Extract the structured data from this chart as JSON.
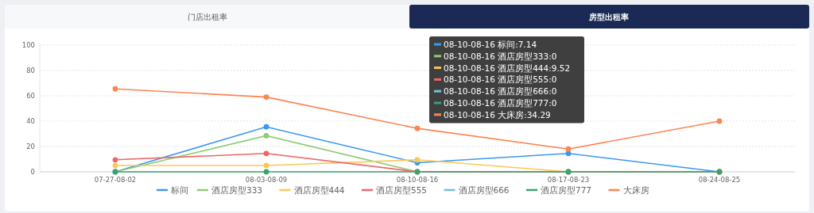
{
  "chart_data": {
    "type": "line",
    "categories": [
      "07-27-08-02",
      "08-03-08-09",
      "08-10-08-16",
      "08-17-08-23",
      "08-24-08-25"
    ],
    "series": [
      {
        "name": "标间",
        "color": "#3a98f0",
        "values": [
          0,
          35.5,
          7.14,
          14.5,
          0
        ]
      },
      {
        "name": "酒店房型333",
        "color": "#91cc75",
        "values": [
          0,
          28.5,
          0,
          0,
          0
        ]
      },
      {
        "name": "酒店房型444",
        "color": "#fac858",
        "values": [
          5,
          5,
          9.52,
          0,
          0
        ]
      },
      {
        "name": "酒店房型555",
        "color": "#ee6666",
        "values": [
          9.5,
          14.5,
          0,
          0,
          0
        ]
      },
      {
        "name": "酒店房型666",
        "color": "#73c0de",
        "values": [
          null,
          null,
          null,
          null,
          null
        ]
      },
      {
        "name": "酒店房型777",
        "color": "#3ba272",
        "values": [
          0,
          0,
          0,
          0,
          0
        ]
      },
      {
        "name": "大床房",
        "color": "#fc8452",
        "values": [
          65.5,
          59,
          34.29,
          18,
          40
        ]
      }
    ],
    "ylim": [
      0,
      100
    ],
    "yticks": [
      0,
      20,
      40,
      60,
      80,
      100
    ],
    "grid": "y",
    "legend": "bottom",
    "marker": "circle",
    "line_style": "solid",
    "annotations": [
      "门店出租率",
      "房型出租率",
      "08-10-08-16 标间:7.14",
      "08-10-08-16 酒店房型333:0",
      "08-10-08-16 酒店房型444:9.52",
      "08-10-08-16 酒店房型555:0",
      "08-10-08-16 酒店房型666:0",
      "08-10-08-16 酒店房型777:0",
      "08-10-08-16 大床房:34.29"
    ]
  }
}
